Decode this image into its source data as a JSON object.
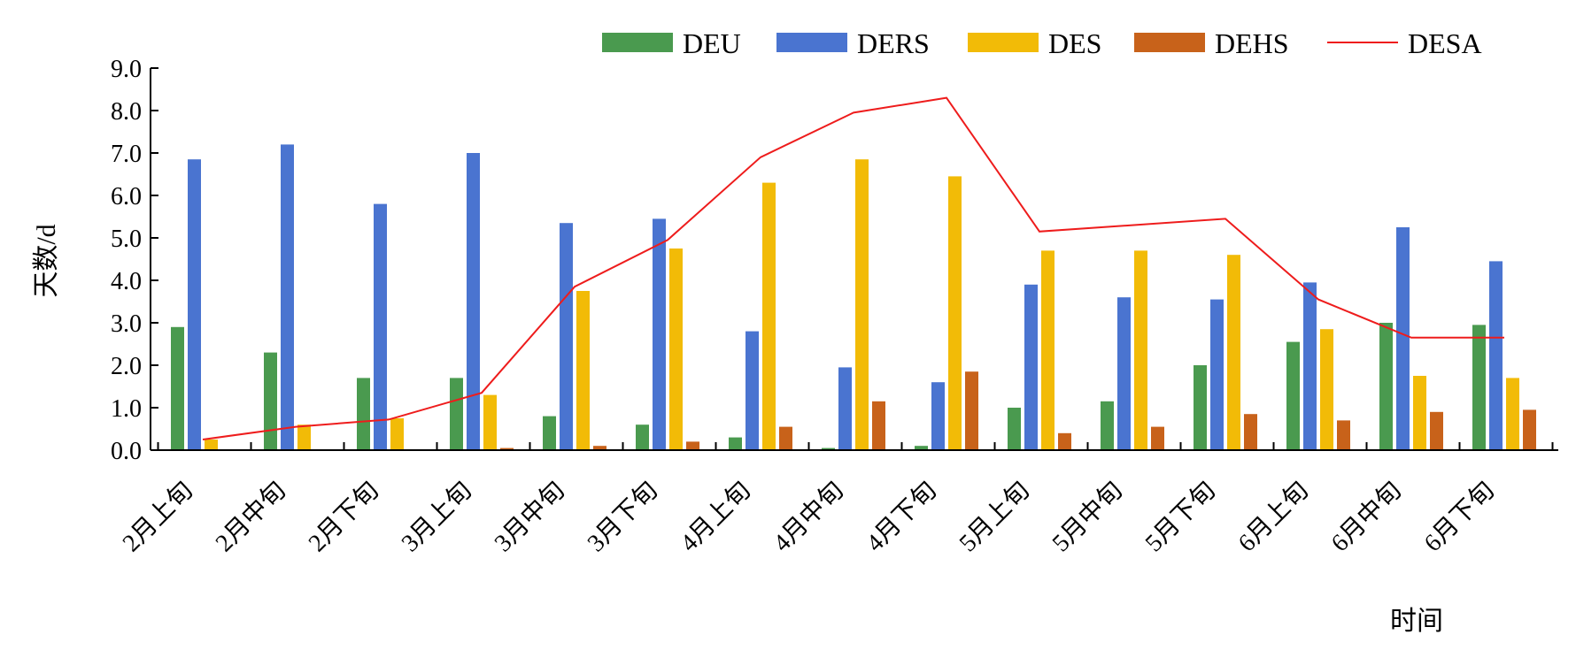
{
  "chart_data": {
    "type": "bar",
    "title": "",
    "xlabel": "时间",
    "ylabel": "天数/d",
    "ylim": [
      0,
      9
    ],
    "yticks": [
      "0.0",
      "1.0",
      "2.0",
      "3.0",
      "4.0",
      "5.0",
      "6.0",
      "7.0",
      "8.0",
      "9.0"
    ],
    "grid": false,
    "legend_position": "top",
    "categories": [
      "2月上旬",
      "2月中旬",
      "2月下旬",
      "3月上旬",
      "3月中旬",
      "3月下旬",
      "4月上旬",
      "4月中旬",
      "4月下旬",
      "5月上旬",
      "5月中旬",
      "5月下旬",
      "6月上旬",
      "6月中旬",
      "6月下旬"
    ],
    "series": [
      {
        "name": "DEU",
        "kind": "bar",
        "color": "#4a9a4f",
        "values": [
          2.9,
          2.3,
          1.7,
          1.7,
          0.8,
          0.6,
          0.3,
          0.05,
          0.1,
          1.0,
          1.15,
          2.0,
          2.55,
          3.0,
          2.95
        ]
      },
      {
        "name": "DERS",
        "kind": "bar",
        "color": "#4a74d0",
        "values": [
          6.85,
          7.2,
          5.8,
          7.0,
          5.35,
          5.45,
          2.8,
          1.95,
          1.6,
          3.9,
          3.6,
          3.55,
          3.95,
          5.25,
          4.45
        ]
      },
      {
        "name": "DES",
        "kind": "bar",
        "color": "#f2bb07",
        "values": [
          0.25,
          0.6,
          0.75,
          1.3,
          3.75,
          4.75,
          6.3,
          6.85,
          6.45,
          4.7,
          4.7,
          4.6,
          2.85,
          1.75,
          1.7
        ]
      },
      {
        "name": "DEHS",
        "kind": "bar",
        "color": "#c8621a",
        "values": [
          0,
          0,
          0,
          0.05,
          0.1,
          0.2,
          0.55,
          1.15,
          1.85,
          0.4,
          0.55,
          0.85,
          0.7,
          0.9,
          0.95
        ]
      },
      {
        "name": "DESA",
        "kind": "line",
        "color": "#ee1c1c",
        "values": [
          0.25,
          0.55,
          0.72,
          1.35,
          3.85,
          4.95,
          6.9,
          7.95,
          8.3,
          5.15,
          5.3,
          5.45,
          3.55,
          2.65,
          2.65
        ]
      }
    ]
  }
}
